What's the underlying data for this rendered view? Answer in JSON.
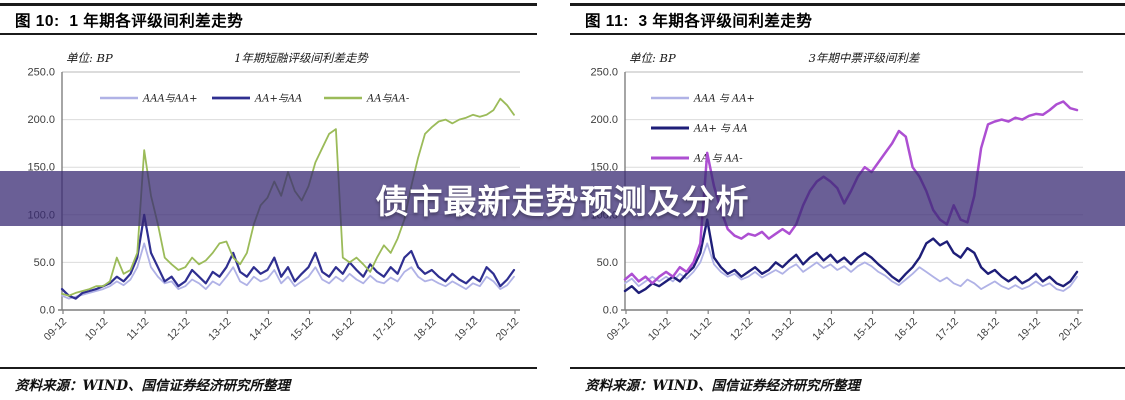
{
  "banner": {
    "text": "债市最新走势预测及分析",
    "bg": "rgba(56,42,115,0.75)",
    "text_color": "#ffffff"
  },
  "panels": [
    {
      "figure_title": "图 10:  1 年期各评级间利差走势",
      "source_note": "资料来源：WIND、国信证券经济研究所整理"
    },
    {
      "figure_title": "图 11:  3 年期各评级间利差走势",
      "source_note": "资料来源：WIND、国信证券经济研究所整理"
    }
  ],
  "chart_data": [
    {
      "type": "line",
      "title": "1年期短融评级间利差走势",
      "unit_label": "单位: BP",
      "ylabel": "BP",
      "ylim": [
        0,
        250
      ],
      "yticks": [
        0,
        50,
        100,
        150,
        200,
        250
      ],
      "grid": true,
      "legend_position": "horizontal-top",
      "x_tick_labels": [
        "09-12",
        "10-12",
        "11-12",
        "12-12",
        "13-12",
        "14-12",
        "15-12",
        "16-12",
        "17-12",
        "18-12",
        "19-12",
        "20-12"
      ],
      "series": [
        {
          "name": "AAA与AA+",
          "color": "#b0b2e6",
          "width": 1.8,
          "values": [
            15,
            12,
            14,
            16,
            18,
            20,
            22,
            25,
            30,
            26,
            32,
            45,
            70,
            45,
            35,
            28,
            30,
            22,
            25,
            32,
            28,
            22,
            30,
            26,
            35,
            45,
            30,
            26,
            35,
            30,
            33,
            42,
            28,
            35,
            25,
            30,
            35,
            45,
            32,
            28,
            35,
            30,
            38,
            32,
            28,
            36,
            30,
            28,
            34,
            30,
            40,
            45,
            35,
            30,
            32,
            28,
            25,
            30,
            26,
            22,
            28,
            25,
            35,
            30,
            22,
            26,
            35
          ]
        },
        {
          "name": "AA+与AA",
          "color": "#2f2f90",
          "width": 2.2,
          "values": [
            22,
            15,
            12,
            18,
            20,
            22,
            25,
            28,
            35,
            30,
            38,
            55,
            100,
            60,
            45,
            30,
            35,
            25,
            30,
            42,
            35,
            28,
            40,
            35,
            45,
            60,
            40,
            35,
            45,
            38,
            42,
            55,
            35,
            45,
            30,
            38,
            45,
            60,
            40,
            35,
            45,
            38,
            50,
            42,
            35,
            48,
            40,
            35,
            45,
            38,
            55,
            62,
            45,
            38,
            42,
            35,
            30,
            38,
            32,
            28,
            35,
            30,
            45,
            38,
            25,
            32,
            42
          ]
        },
        {
          "name": "AA与AA-",
          "color": "#9bbb59",
          "width": 1.8,
          "values": [
            17,
            15,
            18,
            20,
            22,
            25,
            25,
            30,
            55,
            38,
            42,
            60,
            168,
            120,
            90,
            55,
            48,
            42,
            45,
            55,
            48,
            52,
            60,
            70,
            72,
            55,
            48,
            60,
            90,
            110,
            118,
            135,
            120,
            145,
            125,
            115,
            130,
            155,
            170,
            185,
            190,
            55,
            50,
            55,
            48,
            40,
            55,
            68,
            60,
            75,
            95,
            130,
            160,
            185,
            192,
            198,
            200,
            196,
            200,
            202,
            205,
            203,
            205,
            210,
            222,
            215,
            205
          ]
        }
      ]
    },
    {
      "type": "line",
      "title": "3年期中票评级间利差",
      "unit_label": "单位: BP",
      "ylabel": "BP",
      "ylim": [
        0,
        250
      ],
      "yticks": [
        0,
        50,
        100,
        150,
        200,
        250
      ],
      "grid": true,
      "legend_position": "vertical-left",
      "x_tick_labels": [
        "09-12",
        "10-12",
        "11-12",
        "12-12",
        "13-12",
        "14-12",
        "15-12",
        "16-12",
        "17-12",
        "18-12",
        "19-12",
        "20-12"
      ],
      "series": [
        {
          "name": "AAA 与 AA+",
          "color": "#b0b2e6",
          "width": 1.8,
          "values": [
            28,
            33,
            25,
            30,
            35,
            30,
            35,
            30,
            38,
            33,
            40,
            50,
            70,
            48,
            40,
            35,
            38,
            32,
            35,
            40,
            34,
            38,
            42,
            38,
            44,
            48,
            40,
            45,
            50,
            44,
            48,
            42,
            46,
            40,
            46,
            50,
            46,
            40,
            36,
            30,
            26,
            32,
            38,
            45,
            40,
            35,
            30,
            34,
            28,
            25,
            32,
            28,
            22,
            26,
            30,
            25,
            22,
            26,
            22,
            25,
            30,
            25,
            28,
            22,
            20,
            25,
            35
          ]
        },
        {
          "name": "AA+ 与 AA",
          "color": "#1e1e78",
          "width": 2.4,
          "values": [
            20,
            25,
            18,
            22,
            28,
            25,
            30,
            35,
            30,
            38,
            45,
            60,
            95,
            55,
            45,
            38,
            42,
            35,
            40,
            45,
            38,
            42,
            50,
            45,
            52,
            58,
            48,
            55,
            60,
            52,
            58,
            50,
            55,
            48,
            55,
            60,
            55,
            48,
            42,
            35,
            30,
            38,
            45,
            55,
            70,
            75,
            68,
            72,
            60,
            55,
            65,
            60,
            45,
            38,
            42,
            35,
            30,
            35,
            28,
            32,
            38,
            30,
            35,
            28,
            25,
            30,
            40
          ]
        },
        {
          "name": "AA 与 AA-",
          "color": "#ad4fd2",
          "width": 2.5,
          "values": [
            32,
            38,
            30,
            35,
            28,
            35,
            40,
            35,
            45,
            40,
            50,
            70,
            165,
            130,
            105,
            85,
            78,
            75,
            80,
            78,
            82,
            75,
            80,
            85,
            80,
            90,
            110,
            125,
            135,
            140,
            135,
            128,
            112,
            125,
            140,
            150,
            145,
            155,
            165,
            175,
            188,
            182,
            150,
            140,
            125,
            105,
            95,
            90,
            110,
            95,
            92,
            120,
            170,
            195,
            198,
            200,
            198,
            202,
            200,
            204,
            206,
            205,
            210,
            216,
            219,
            212,
            210
          ]
        }
      ]
    }
  ]
}
